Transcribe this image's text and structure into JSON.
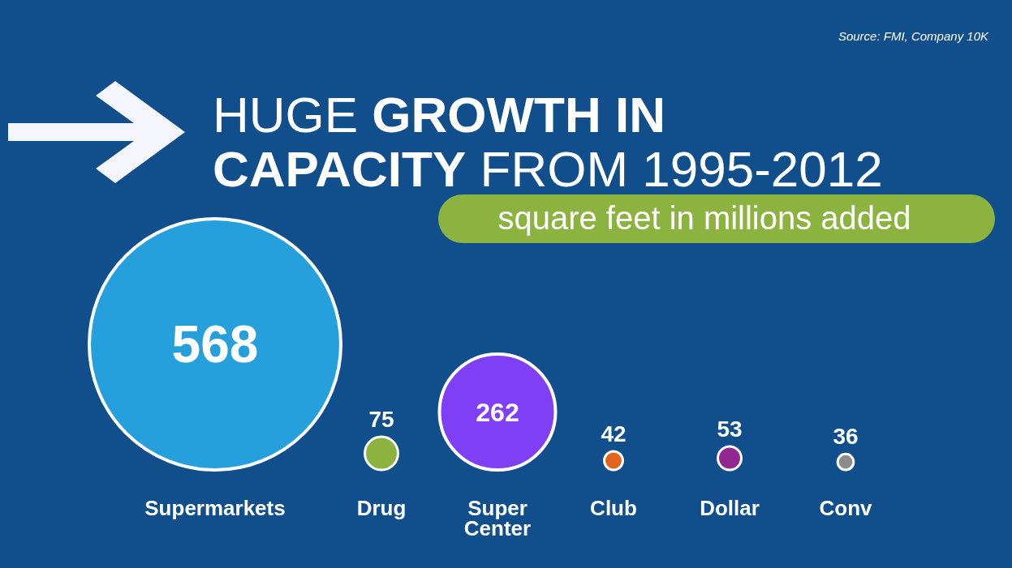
{
  "chart_data": {
    "type": "other",
    "title": "HUGE GROWTH IN CAPACITY FROM 1995-2012",
    "subtitle": "square feet in millions added",
    "categories": [
      "Supermarkets",
      "Drug",
      "Super Center",
      "Club",
      "Dollar",
      "Conv"
    ],
    "values": [
      568,
      75,
      262,
      42,
      53,
      36
    ],
    "colors": [
      "#25a0dc",
      "#8cb33f",
      "#7f3ff5",
      "#e2641a",
      "#92278f",
      "#8c8c8c"
    ],
    "data_labels": true,
    "annotations": [
      "Source: FMI, Company 10K"
    ]
  }
}
